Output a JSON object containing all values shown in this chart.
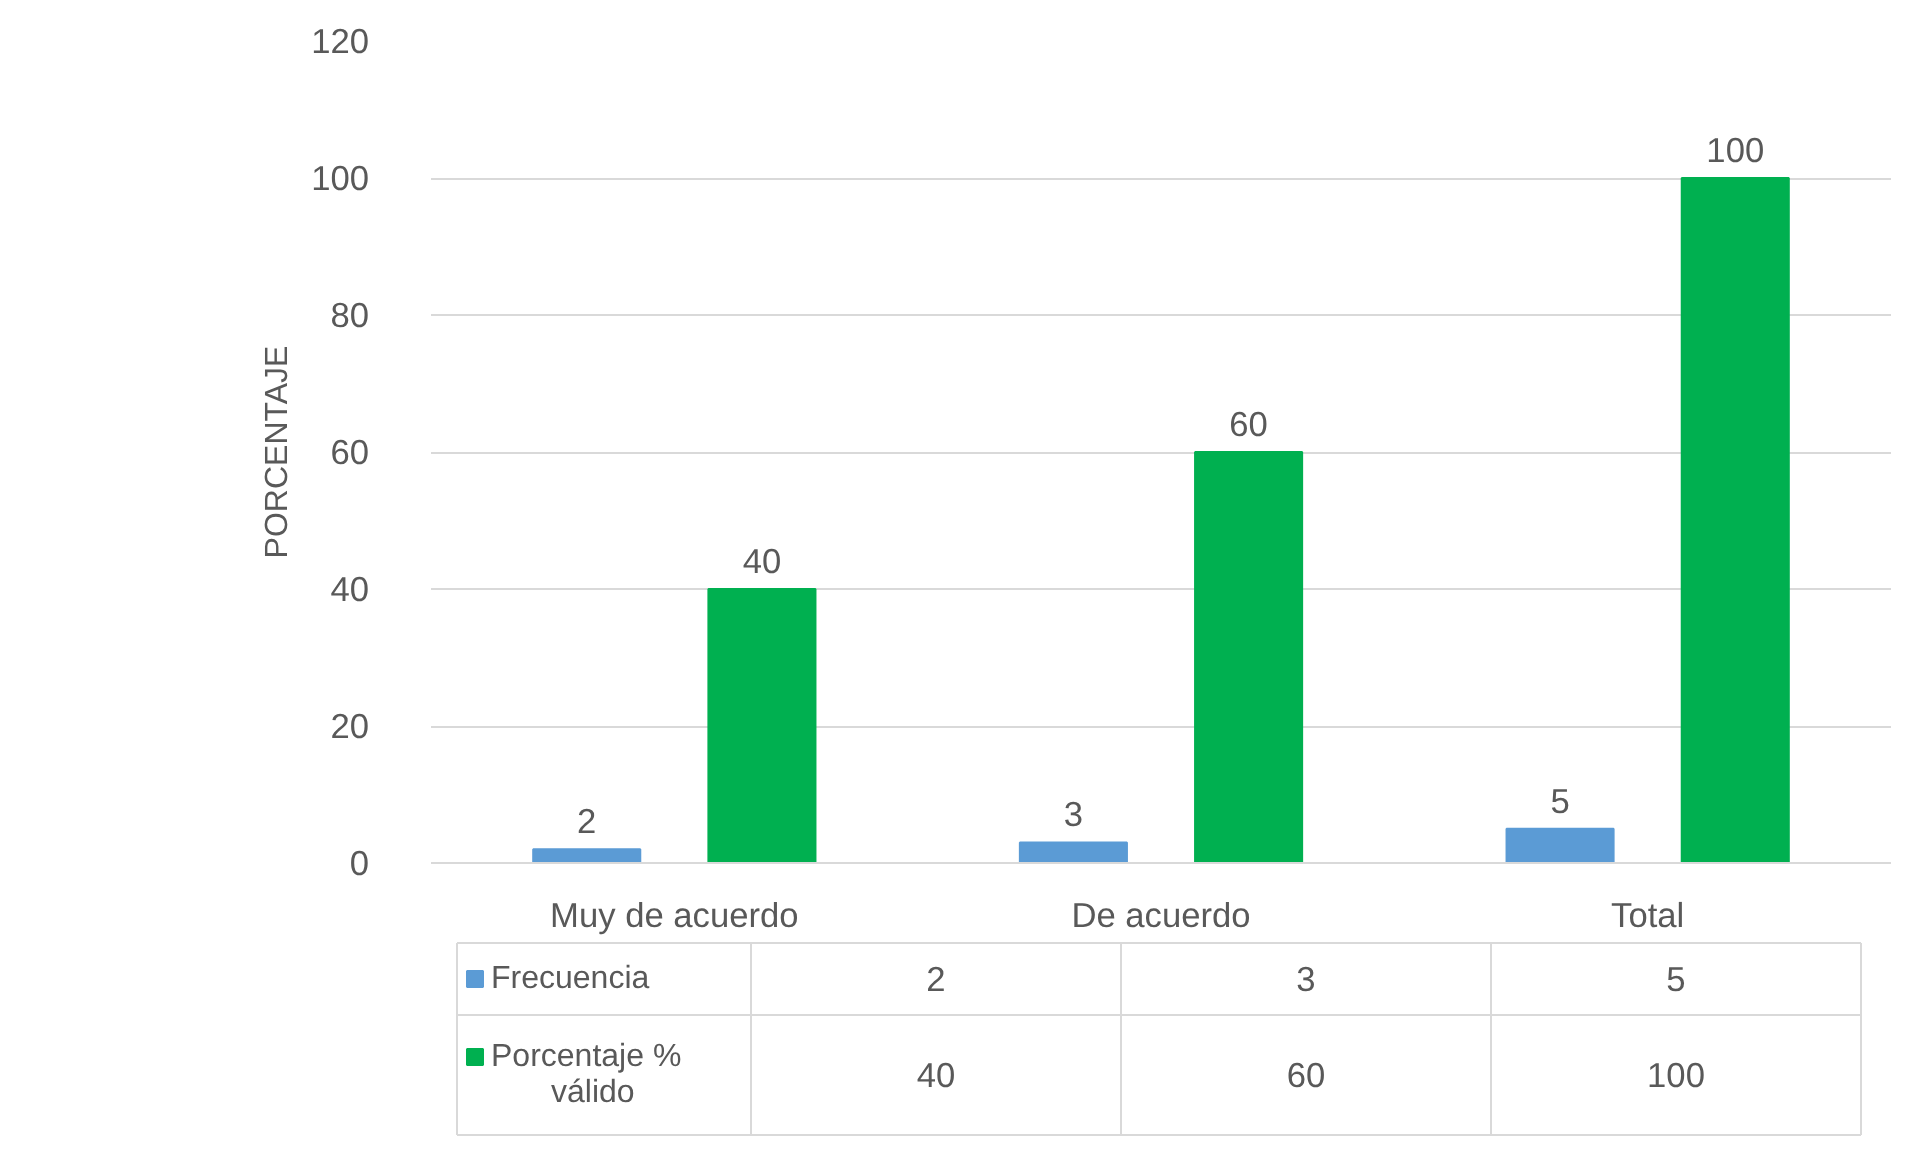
{
  "chart_data": {
    "type": "bar",
    "ylabel": "PORCENTAJE",
    "categories": [
      "Muy de acuerdo",
      "De acuerdo",
      "Total"
    ],
    "series": [
      {
        "name": "Frecuencia",
        "color": "#5b9bd5",
        "values": [
          2,
          3,
          5
        ]
      },
      {
        "name": "Porcentaje % válido",
        "color": "#00b050",
        "values": [
          40,
          60,
          100
        ]
      }
    ],
    "annotations": [
      "2",
      "3",
      "5",
      "40",
      "60",
      "100"
    ],
    "ylim": [
      0,
      120
    ],
    "yticks": [
      0,
      20,
      40,
      60,
      80,
      100,
      120
    ],
    "grid": "y",
    "data_labels": true,
    "legend": "bottom"
  }
}
